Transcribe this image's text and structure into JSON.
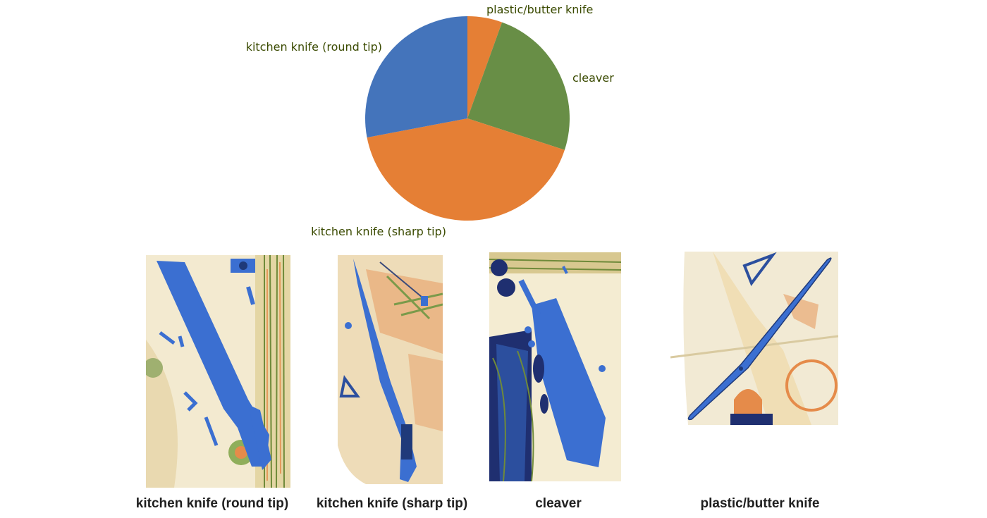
{
  "chart_data": {
    "type": "pie",
    "title": "",
    "slices": [
      {
        "label": "plastic/butter knife",
        "value": 5.5,
        "color": "#e57f35"
      },
      {
        "label": "cleaver",
        "value": 24.5,
        "color": "#688e46"
      },
      {
        "label": "kitchen knife (sharp tip)",
        "value": 42.0,
        "color": "#e57f35"
      },
      {
        "label": "kitchen knife (round tip)",
        "value": 28.0,
        "color": "#4474bb"
      }
    ],
    "start": "top, clockwise",
    "legend": "none"
  },
  "examples": [
    {
      "caption": "kitchen knife (round tip)",
      "icon": "xray-round-tip-knife-image"
    },
    {
      "caption": "kitchen knife (sharp tip)",
      "icon": "xray-sharp-tip-knife-image"
    },
    {
      "caption": "cleaver",
      "icon": "xray-cleaver-image"
    },
    {
      "caption": "plastic/butter knife",
      "icon": "xray-butter-knife-image"
    }
  ],
  "colors": {
    "highlight_blue": "#3b6fd1",
    "xray_background": "#f3ead0",
    "xray_orange": "#e58b4a",
    "xray_green": "#7a9a4a"
  }
}
